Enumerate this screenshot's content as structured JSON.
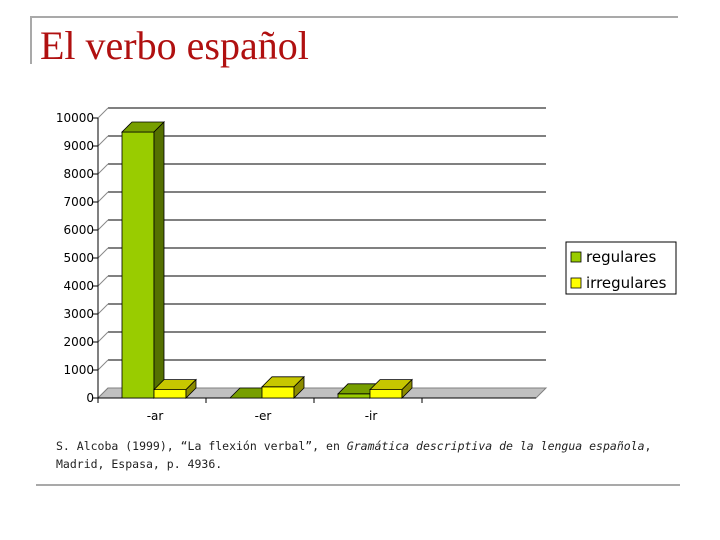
{
  "slide": {
    "title": "El verbo español",
    "citation": {
      "pre": "S. Alcoba (1999), “La flexión verbal”, en ",
      "italic": "Gramática descriptiva de la lengua española",
      "post": ", Madrid, Espasa, p. 4936."
    }
  },
  "chart_data": {
    "type": "bar",
    "categories": [
      "-ar",
      "-er",
      "-ir"
    ],
    "series": [
      {
        "name": "regulares",
        "values": [
          9500,
          0,
          150
        ],
        "color": "#99cc00"
      },
      {
        "name": "irregulares",
        "values": [
          300,
          400,
          300
        ],
        "color": "#ffff00"
      }
    ],
    "ylim": [
      0,
      10000
    ],
    "yticks": [
      "0",
      "1000",
      "2000",
      "3000",
      "4000",
      "5000",
      "6000",
      "7000",
      "8000",
      "9000",
      "10000"
    ],
    "grid": true,
    "legend": "right",
    "style": "3d"
  }
}
